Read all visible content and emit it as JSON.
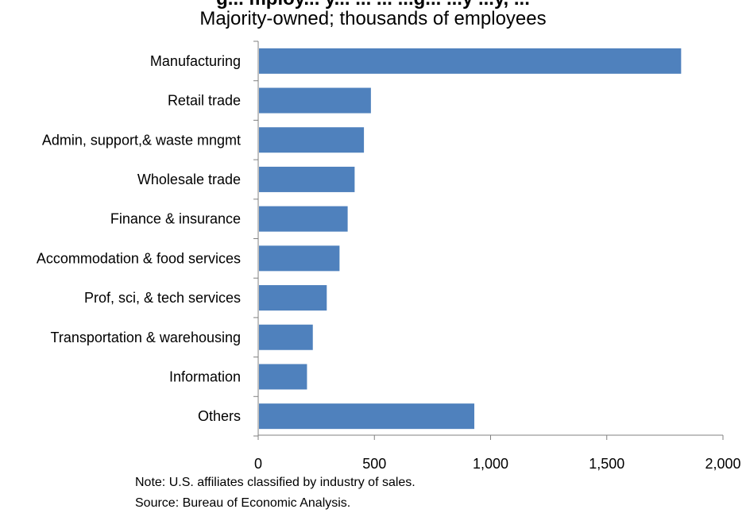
{
  "chart_data": {
    "type": "bar",
    "orientation": "horizontal",
    "title_cut": "g... mploy... y... ... ... ...g... ...y ...y, ...",
    "subtitle": "Majority-owned; thousands of employees",
    "categories": [
      "Manufacturing",
      "Retail trade",
      "Admin, support,& waste mngmt",
      "Wholesale trade",
      "Finance & insurance",
      "Accommodation & food services",
      "Prof, sci, & tech services",
      "Transportation & warehousing",
      "Information",
      "Others"
    ],
    "values": [
      1820,
      485,
      455,
      415,
      385,
      350,
      295,
      235,
      210,
      930
    ],
    "xlim": [
      0,
      2000
    ],
    "xticks": [
      0,
      500,
      1000,
      1500,
      2000
    ],
    "xtick_labels": [
      "0",
      "500",
      "1,000",
      "1,500",
      "2,000"
    ],
    "bar_color": "#4F81BD",
    "grid": false,
    "legend": "none"
  },
  "notes": {
    "line1": "Note: U.S. affiliates classified by industry of sales.",
    "line2": "Source: Bureau of Economic Analysis."
  }
}
